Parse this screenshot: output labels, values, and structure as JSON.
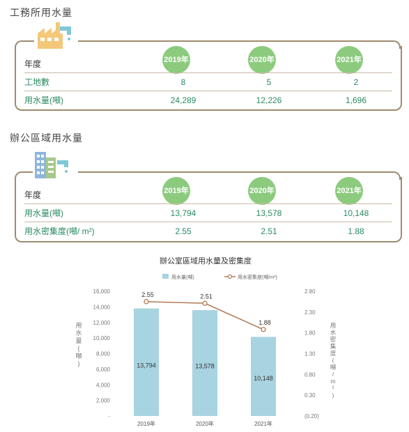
{
  "factory": {
    "title": "工務所用水量",
    "header_label": "年度",
    "years": [
      "2019年",
      "2020年",
      "2021年"
    ],
    "rows": [
      {
        "label": "工地數",
        "values": [
          "8",
          "5",
          "2"
        ]
      },
      {
        "label": "用水量(噸)",
        "values": [
          "24,289",
          "12,226",
          "1,696"
        ]
      }
    ]
  },
  "office": {
    "title": "辦公區域用水量",
    "header_label": "年度",
    "years": [
      "2019年",
      "2020年",
      "2021年"
    ],
    "rows": [
      {
        "label": "用水量(噸)",
        "values": [
          "13,794",
          "13,578",
          "10,148"
        ]
      },
      {
        "label": "用水密集度(噸/ m²)",
        "values": [
          "2.55",
          "2.51",
          "1.88"
        ]
      }
    ]
  },
  "colors": {
    "bar": "#a8d3e0",
    "line": "#b07a55",
    "accent": "#2a8a63",
    "badge": "#8ccb7e",
    "frame": "#a08a70"
  },
  "chart_data": {
    "type": "bar",
    "title": "辦公室區域用水量及密集度",
    "categories": [
      "2019年",
      "2020年",
      "2021年"
    ],
    "series": [
      {
        "name": "用水量(噸)",
        "type": "bar",
        "axis": "left",
        "values": [
          13794,
          13578,
          10148
        ],
        "labels": [
          "13,794",
          "13,578",
          "10,148"
        ]
      },
      {
        "name": "用水密集度(噸/m²)",
        "type": "line",
        "axis": "right",
        "values": [
          2.55,
          2.51,
          1.88
        ],
        "labels": [
          "2.55",
          "2.51",
          "1.88"
        ]
      }
    ],
    "ylabel": "用水量(噸)",
    "y2label": "用水密集度(噸/m²)",
    "ylim": [
      0,
      16000
    ],
    "y2lim": [
      -0.2,
      2.8
    ],
    "yticks": [
      "16,000",
      "14,000",
      "12,000",
      "10,000",
      "8,000",
      "6,000",
      "4,000",
      "2,000",
      "-"
    ],
    "y2ticks": [
      "2.80",
      "2.30",
      "1.80",
      "1.30",
      "0.80",
      "0.30",
      "(0.20)"
    ],
    "legend_position": "top",
    "grid": false
  }
}
